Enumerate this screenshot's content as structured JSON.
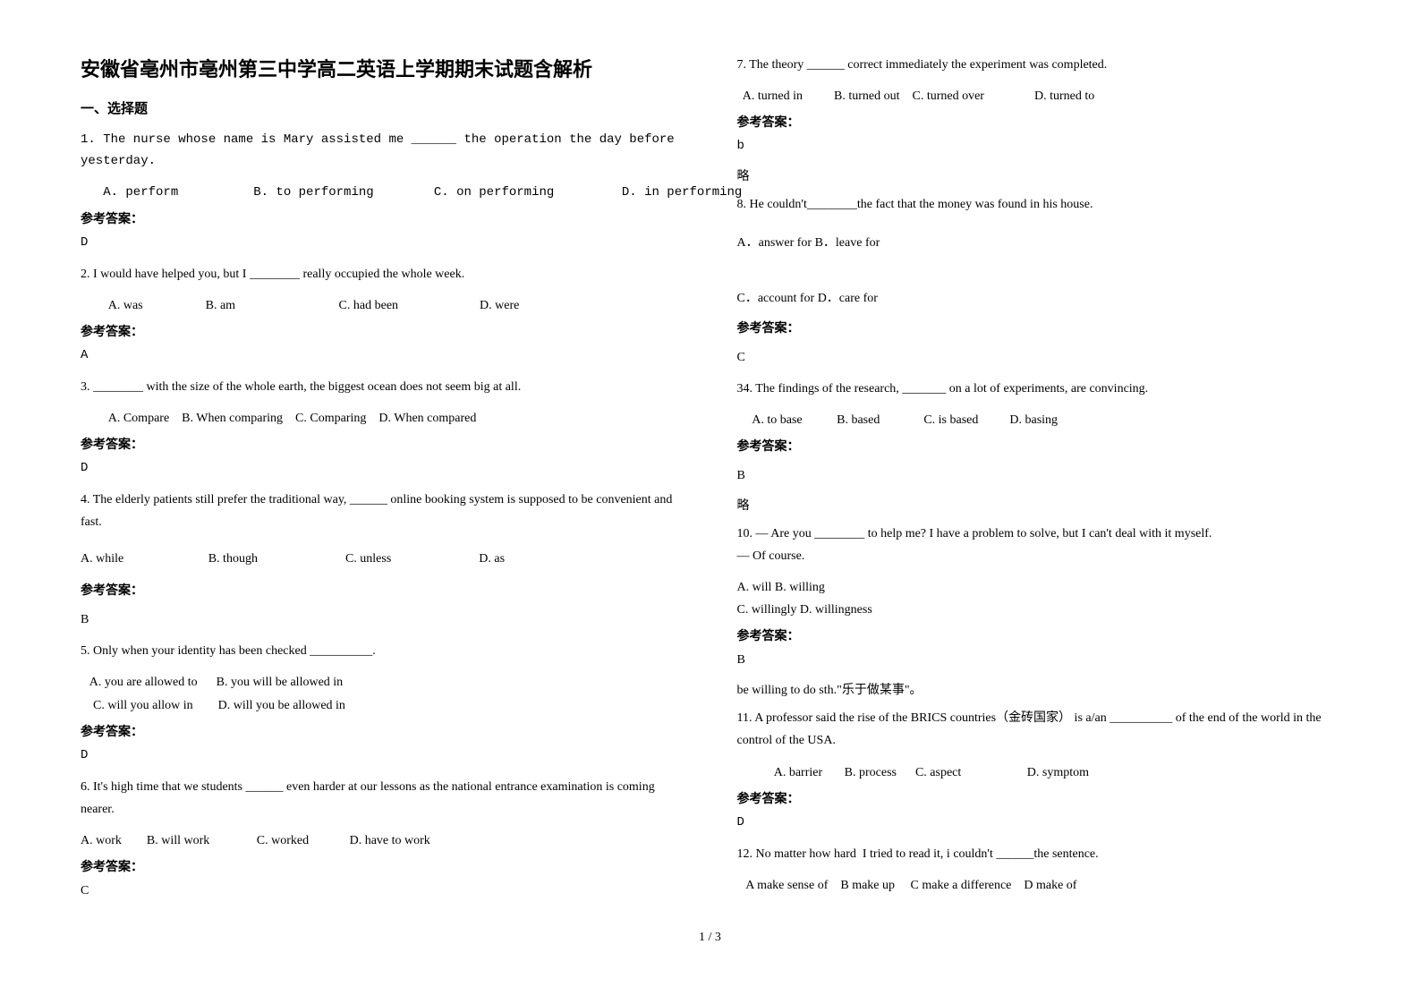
{
  "title": "安徽省亳州市亳州第三中学高二英语上学期期末试题含解析",
  "section1": "一、选择题",
  "answer_label": "参考答案：",
  "page_number": "1 / 3",
  "questions": [
    {
      "id": "q1",
      "prompt": "1. The nurse whose name is Mary assisted me ______ the operation the day before yesterday.",
      "opts": "   A. perform          B. to performing        C. on performing         D. in performing",
      "answer": "D",
      "mono": true
    },
    {
      "id": "q2",
      "prompt": "2. I would have helped you, but I ________ really occupied the whole week.",
      "opts": "         A. was                    B. am                                 C. had been                          D. were",
      "answer": "A",
      "ans_mono": true
    },
    {
      "id": "q3",
      "prompt": "3. ________ with the size of the whole earth, the biggest ocean does not seem big at all.",
      "opts": "         A. Compare    B. When comparing    C. Comparing    D. When compared",
      "answer": "D",
      "ans_mono": true
    },
    {
      "id": "q4",
      "prompt": "4. The elderly patients still prefer the traditional way, ______ online booking system is supposed to be convenient and fast.",
      "opts": "A. while                           B. though                            C. unless                            D. as",
      "answer": "B"
    },
    {
      "id": "q5",
      "prompt": "5. Only when your identity has been checked __________.",
      "opts": "   A. you are allowed to      B. you will be allowed in\n    C. will you allow in        D. will you be allowed in",
      "answer": "D",
      "ans_mono": true
    },
    {
      "id": "q6",
      "prompt": "6. It's high time that we students ______ even harder at our lessons as the national entrance examination is coming nearer.",
      "opts": "A. work        B. will work               C. worked             D. have to work",
      "answer": "C"
    },
    {
      "id": "q7",
      "prompt": "7. The theory ______ correct immediately the experiment was completed.",
      "opts": "  A. turned in          B. turned out    C. turned over                D. turned to",
      "answer": "b",
      "note_after": "略",
      "ans_mono": true
    },
    {
      "id": "q8",
      "prompt": "8. He couldn't________the fact that the money was found in his house.",
      "opts": "A．answer for     B．leave for\n\nC．account for    D．care for",
      "answer": "C"
    },
    {
      "id": "q9",
      "prompt": "34. The findings of the research, _______ on a lot of experiments, are convincing.",
      "opts": "     A. to base           B. based              C. is based          D. basing",
      "answer": "B",
      "note_after": "略"
    },
    {
      "id": "q10",
      "prompt": "10. — Are you ________ to help me? I have a problem to solve, but I can't deal with it myself.\n— Of course.",
      "opts": "A. will    B. willing\nC. willingly       D. willingness",
      "answer": "B",
      "note_after": "be willing to do sth.\"乐于做某事\"。"
    },
    {
      "id": "q11",
      "prompt": "11. A professor said the rise of the BRICS countries（金砖国家） is a/an __________ of the end of the world in the control of the USA.",
      "opts": "            A. barrier       B. process      C. aspect                     D. symptom",
      "answer": "D",
      "ans_mono": true
    },
    {
      "id": "q12",
      "prompt": "12. No matter how hard  I tried to read it, i couldn't ______the sentence.",
      "opts": "   A make sense of    B make up     C make a difference    D make of",
      "no_answer": true
    }
  ]
}
